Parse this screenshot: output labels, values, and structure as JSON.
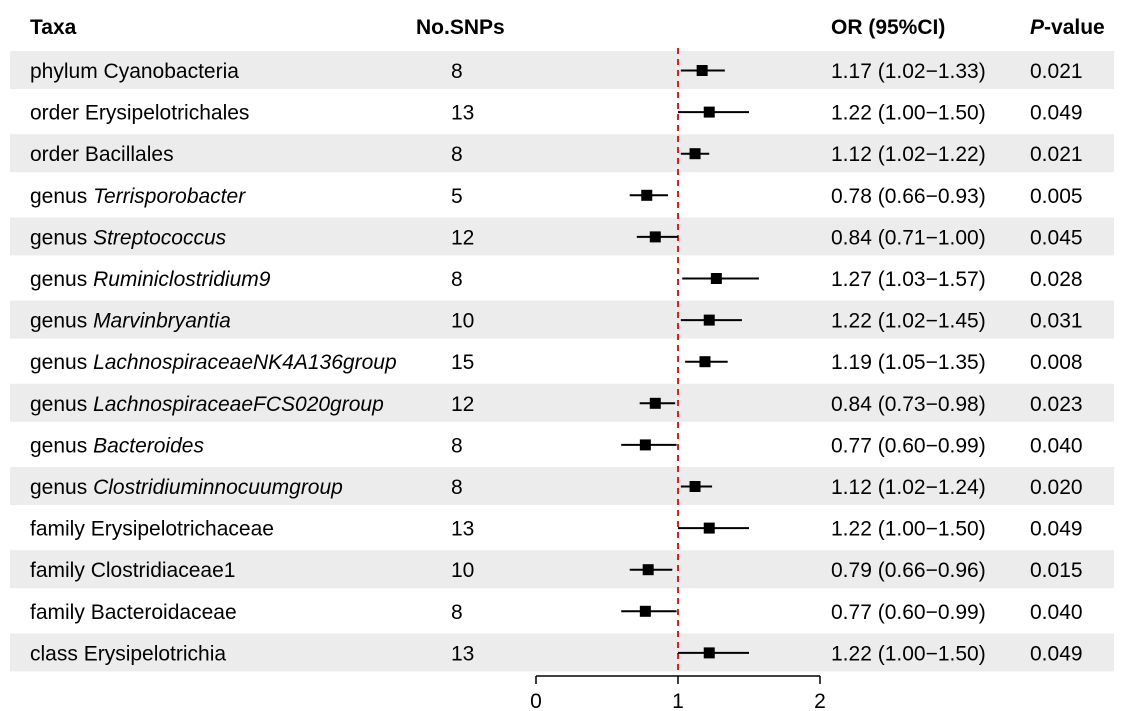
{
  "headers": {
    "taxa": "Taxa",
    "nsnps": "No.SNPs",
    "or": "OR (95%CI)",
    "p_prefix": "P",
    "p_suffix": "-value"
  },
  "chart_data": {
    "type": "forest",
    "title": "",
    "xlabel": "",
    "xlim": [
      0,
      2
    ],
    "xticks": [
      "0",
      "1",
      "2"
    ],
    "reference_line": 1,
    "colors": {
      "stripe": "#ececec",
      "refline": "#e41a1c",
      "marker": "#000000"
    },
    "rows": [
      {
        "rank": "phylum",
        "name": "Cyanobacteria",
        "italic": false,
        "snps": "8",
        "or": 1.17,
        "lo": 1.02,
        "hi": 1.33,
        "or_text": "1.17 (1.02−1.33)",
        "p": "0.021"
      },
      {
        "rank": "order",
        "name": "Erysipelotrichales",
        "italic": false,
        "snps": "13",
        "or": 1.22,
        "lo": 1.0,
        "hi": 1.5,
        "or_text": "1.22 (1.00−1.50)",
        "p": "0.049"
      },
      {
        "rank": "order",
        "name": "Bacillales",
        "italic": false,
        "snps": "8",
        "or": 1.12,
        "lo": 1.02,
        "hi": 1.22,
        "or_text": "1.12 (1.02−1.22)",
        "p": "0.021"
      },
      {
        "rank": "genus",
        "name": "Terrisporobacter",
        "italic": true,
        "snps": "5",
        "or": 0.78,
        "lo": 0.66,
        "hi": 0.93,
        "or_text": "0.78 (0.66−0.93)",
        "p": "0.005"
      },
      {
        "rank": "genus",
        "name": "Streptococcus",
        "italic": true,
        "snps": "12",
        "or": 0.84,
        "lo": 0.71,
        "hi": 1.0,
        "or_text": "0.84 (0.71−1.00)",
        "p": "0.045"
      },
      {
        "rank": "genus",
        "name": "Ruminiclostridium9",
        "italic": true,
        "snps": "8",
        "or": 1.27,
        "lo": 1.03,
        "hi": 1.57,
        "or_text": "1.27 (1.03−1.57)",
        "p": "0.028"
      },
      {
        "rank": "genus",
        "name": "Marvinbryantia",
        "italic": true,
        "snps": "10",
        "or": 1.22,
        "lo": 1.02,
        "hi": 1.45,
        "or_text": "1.22 (1.02−1.45)",
        "p": "0.031"
      },
      {
        "rank": "genus",
        "name": "LachnospiraceaeNK4A136group",
        "italic": true,
        "snps": "15",
        "or": 1.19,
        "lo": 1.05,
        "hi": 1.35,
        "or_text": "1.19 (1.05−1.35)",
        "p": "0.008"
      },
      {
        "rank": "genus",
        "name": "LachnospiraceaeFCS020group",
        "italic": true,
        "snps": "12",
        "or": 0.84,
        "lo": 0.73,
        "hi": 0.98,
        "or_text": "0.84 (0.73−0.98)",
        "p": "0.023"
      },
      {
        "rank": "genus",
        "name": "Bacteroides",
        "italic": true,
        "snps": "8",
        "or": 0.77,
        "lo": 0.6,
        "hi": 0.99,
        "or_text": "0.77 (0.60−0.99)",
        "p": "0.040"
      },
      {
        "rank": "genus",
        "name": "Clostridiuminnocuumgroup",
        "italic": true,
        "snps": "8",
        "or": 1.12,
        "lo": 1.02,
        "hi": 1.24,
        "or_text": "1.12 (1.02−1.24)",
        "p": "0.020"
      },
      {
        "rank": "family",
        "name": "Erysipelotrichaceae",
        "italic": false,
        "snps": "13",
        "or": 1.22,
        "lo": 1.0,
        "hi": 1.5,
        "or_text": "1.22 (1.00−1.50)",
        "p": "0.049"
      },
      {
        "rank": "family",
        "name": "Clostridiaceae1",
        "italic": false,
        "snps": "10",
        "or": 0.79,
        "lo": 0.66,
        "hi": 0.96,
        "or_text": "0.79 (0.66−0.96)",
        "p": "0.015"
      },
      {
        "rank": "family",
        "name": "Bacteroidaceae",
        "italic": false,
        "snps": "8",
        "or": 0.77,
        "lo": 0.6,
        "hi": 0.99,
        "or_text": "0.77 (0.60−0.99)",
        "p": "0.040"
      },
      {
        "rank": "class",
        "name": "Erysipelotrichia",
        "italic": false,
        "snps": "13",
        "or": 1.22,
        "lo": 1.0,
        "hi": 1.5,
        "or_text": "1.22 (1.00−1.50)",
        "p": "0.049"
      }
    ]
  }
}
